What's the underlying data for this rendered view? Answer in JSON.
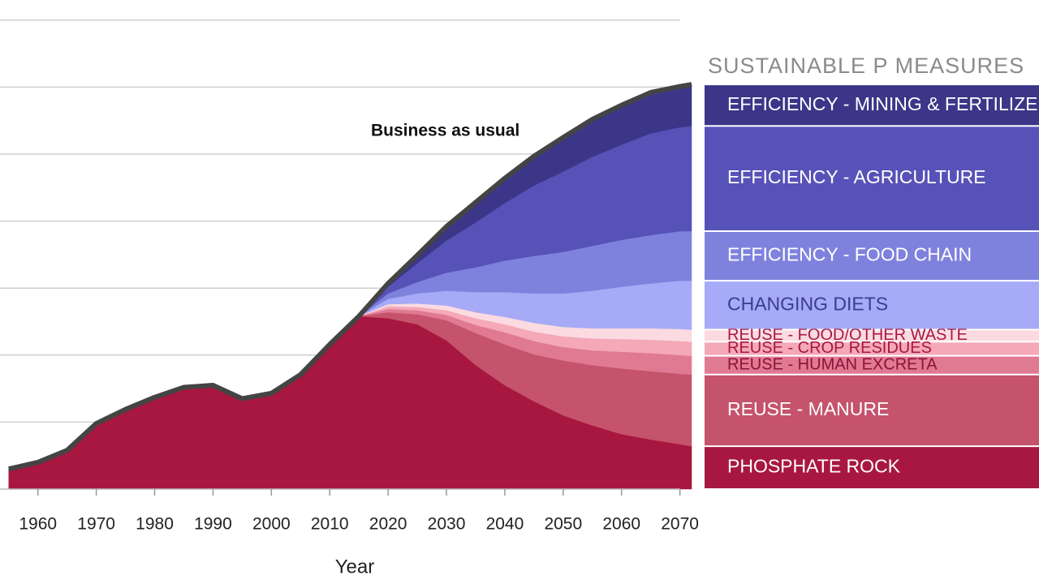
{
  "chart_data": {
    "type": "stacked-area",
    "x_label": "Year",
    "annotation": "Business as usual",
    "legend_title": "SUSTAINABLE P MEASURES",
    "x": [
      1955,
      1960,
      1965,
      1970,
      1975,
      1980,
      1985,
      1990,
      1995,
      2000,
      2005,
      2010,
      2015,
      2020,
      2025,
      2030,
      2035,
      2040,
      2045,
      2050,
      2055,
      2060,
      2065,
      2070,
      2072
    ],
    "xlim": [
      1953.5,
      2072
    ],
    "xticks": [
      1960,
      1970,
      1980,
      1990,
      2000,
      2010,
      2020,
      2030,
      2040,
      2050,
      2060,
      2070
    ],
    "ylim": [
      0,
      7.3
    ],
    "yticks": [
      1,
      2,
      3,
      4,
      5,
      6,
      7
    ],
    "grid": true,
    "series": [
      {
        "name": "PHOSPHATE ROCK",
        "color": "#a8173f",
        "text_color": "#ffffff",
        "values": [
          0.3,
          0.4,
          0.58,
          0.98,
          1.19,
          1.37,
          1.52,
          1.55,
          1.35,
          1.43,
          1.71,
          2.16,
          2.58,
          2.55,
          2.46,
          2.22,
          1.85,
          1.55,
          1.31,
          1.1,
          0.95,
          0.82,
          0.74,
          0.67,
          0.64
        ]
      },
      {
        "name": "REUSE - MANURE",
        "color": "#c4536b",
        "text_color": "#ffffff",
        "values": [
          0,
          0,
          0,
          0,
          0,
          0,
          0,
          0,
          0,
          0,
          0,
          0,
          0,
          0.09,
          0.15,
          0.3,
          0.48,
          0.61,
          0.7,
          0.82,
          0.9,
          0.98,
          1.02,
          1.05,
          1.07
        ]
      },
      {
        "name": "REUSE - HUMAN EXCRETA",
        "color": "#e07a92",
        "text_color": "#8e1236",
        "values": [
          0,
          0,
          0,
          0,
          0,
          0,
          0,
          0,
          0,
          0,
          0,
          0,
          0,
          0.05,
          0.06,
          0.08,
          0.12,
          0.18,
          0.2,
          0.2,
          0.22,
          0.25,
          0.27,
          0.28,
          0.28
        ]
      },
      {
        "name": "REUSE - CROP RESIDUES",
        "color": "#f4a8b8",
        "text_color": "#a8173f",
        "values": [
          0,
          0,
          0,
          0,
          0,
          0,
          0,
          0,
          0,
          0,
          0,
          0,
          0,
          0.04,
          0.05,
          0.07,
          0.1,
          0.12,
          0.14,
          0.16,
          0.18,
          0.19,
          0.2,
          0.21,
          0.21
        ]
      },
      {
        "name": "REUSE - FOOD/OTHER WASTE",
        "color": "#fbdbe1",
        "text_color": "#a8173f",
        "values": [
          0,
          0,
          0,
          0,
          0,
          0,
          0,
          0,
          0,
          0,
          0,
          0,
          0,
          0.03,
          0.05,
          0.07,
          0.09,
          0.11,
          0.13,
          0.14,
          0.15,
          0.16,
          0.17,
          0.18,
          0.18
        ]
      },
      {
        "name": "CHANGING DIETS",
        "color": "#a7aaf6",
        "text_color": "#3a3c92",
        "values": [
          0,
          0,
          0,
          0,
          0,
          0,
          0,
          0,
          0,
          0,
          0,
          0,
          0,
          0.08,
          0.15,
          0.22,
          0.3,
          0.37,
          0.44,
          0.5,
          0.56,
          0.62,
          0.67,
          0.72,
          0.73
        ]
      },
      {
        "name": "EFFICIENCY - FOOD CHAIN",
        "color": "#7f82dd",
        "text_color": "#ffffff",
        "values": [
          0,
          0,
          0,
          0,
          0,
          0,
          0,
          0,
          0,
          0,
          0,
          0,
          0,
          0.08,
          0.17,
          0.27,
          0.37,
          0.47,
          0.56,
          0.62,
          0.67,
          0.7,
          0.72,
          0.74,
          0.74
        ]
      },
      {
        "name": "EFFICIENCY - AGRICULTURE",
        "color": "#5752b8",
        "text_color": "#ffffff",
        "values": [
          0,
          0,
          0,
          0,
          0,
          0,
          0,
          0,
          0,
          0,
          0,
          0,
          0,
          0.1,
          0.28,
          0.48,
          0.67,
          0.86,
          1.05,
          1.2,
          1.33,
          1.42,
          1.52,
          1.55,
          1.57
        ]
      },
      {
        "name": "EFFICIENCY - MINING & FERTILIZER",
        "color": "#3b3688",
        "text_color": "#ffffff",
        "values": [
          0,
          0,
          0,
          0,
          0,
          0,
          0,
          0,
          0,
          0,
          0,
          0,
          0,
          0.05,
          0.12,
          0.21,
          0.3,
          0.37,
          0.44,
          0.51,
          0.56,
          0.59,
          0.61,
          0.61,
          0.62
        ]
      }
    ]
  }
}
